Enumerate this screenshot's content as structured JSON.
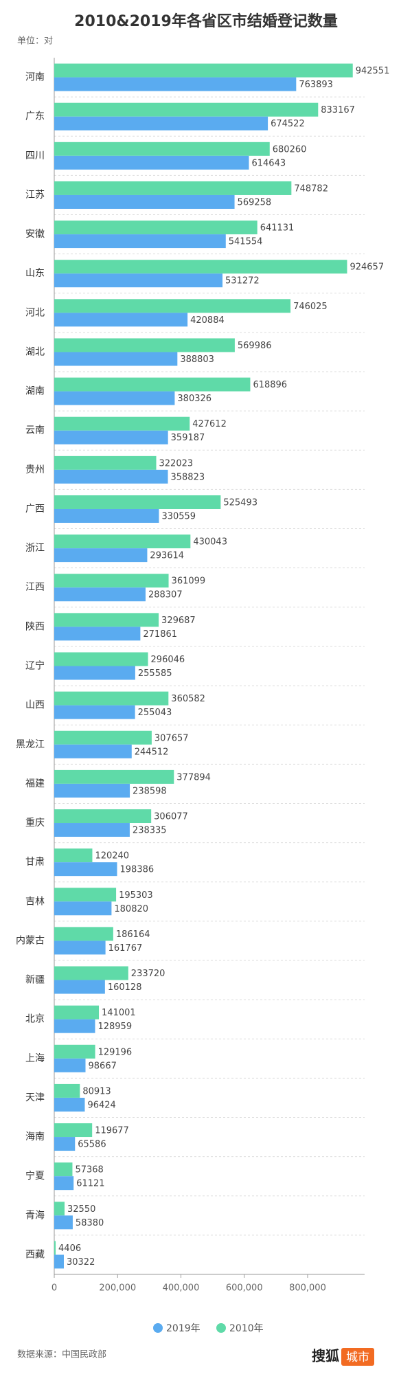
{
  "chart_data": {
    "type": "bar",
    "orientation": "horizontal",
    "title": "2010&2019年各省区市结婚登记数量",
    "subtitle": "单位：对",
    "source": "数据来源：中国民政部",
    "brand": [
      "搜狐",
      "城市"
    ],
    "categories": [
      "河南",
      "广东",
      "四川",
      "江苏",
      "安徽",
      "山东",
      "河北",
      "湖北",
      "湖南",
      "云南",
      "贵州",
      "广西",
      "浙江",
      "江西",
      "陕西",
      "辽宁",
      "山西",
      "黑龙江",
      "福建",
      "重庆",
      "甘肃",
      "吉林",
      "内蒙古",
      "新疆",
      "北京",
      "上海",
      "天津",
      "海南",
      "宁夏",
      "青海",
      "西藏"
    ],
    "series": [
      {
        "name": "2019年",
        "color": "#5aabf0",
        "values": [
          763893,
          674522,
          614643,
          569258,
          541554,
          531272,
          420884,
          388803,
          380326,
          359187,
          358823,
          330559,
          293614,
          288307,
          271861,
          255585,
          255043,
          244512,
          238598,
          238335,
          198386,
          180820,
          161767,
          160128,
          128959,
          98667,
          96424,
          65586,
          61121,
          58380,
          30322
        ]
      },
      {
        "name": "2010年",
        "color": "#5fdaa8",
        "values": [
          942551,
          833167,
          680260,
          748782,
          641131,
          924657,
          746025,
          569986,
          618896,
          427612,
          322023,
          525493,
          430043,
          361099,
          329687,
          296046,
          360582,
          307657,
          377894,
          306077,
          120240,
          195303,
          186164,
          233720,
          141001,
          129196,
          80913,
          119677,
          57368,
          32550,
          4406
        ]
      }
    ],
    "xlim": [
      0,
      980000
    ],
    "xticks": [
      0,
      {
        "value": 200000,
        "label": "200,000"
      },
      {
        "value": 400000,
        "label": "400,000"
      },
      {
        "value": 600000,
        "label": "600,000"
      },
      {
        "value": 800000,
        "label": "800,000"
      }
    ],
    "legend": "bottom"
  }
}
